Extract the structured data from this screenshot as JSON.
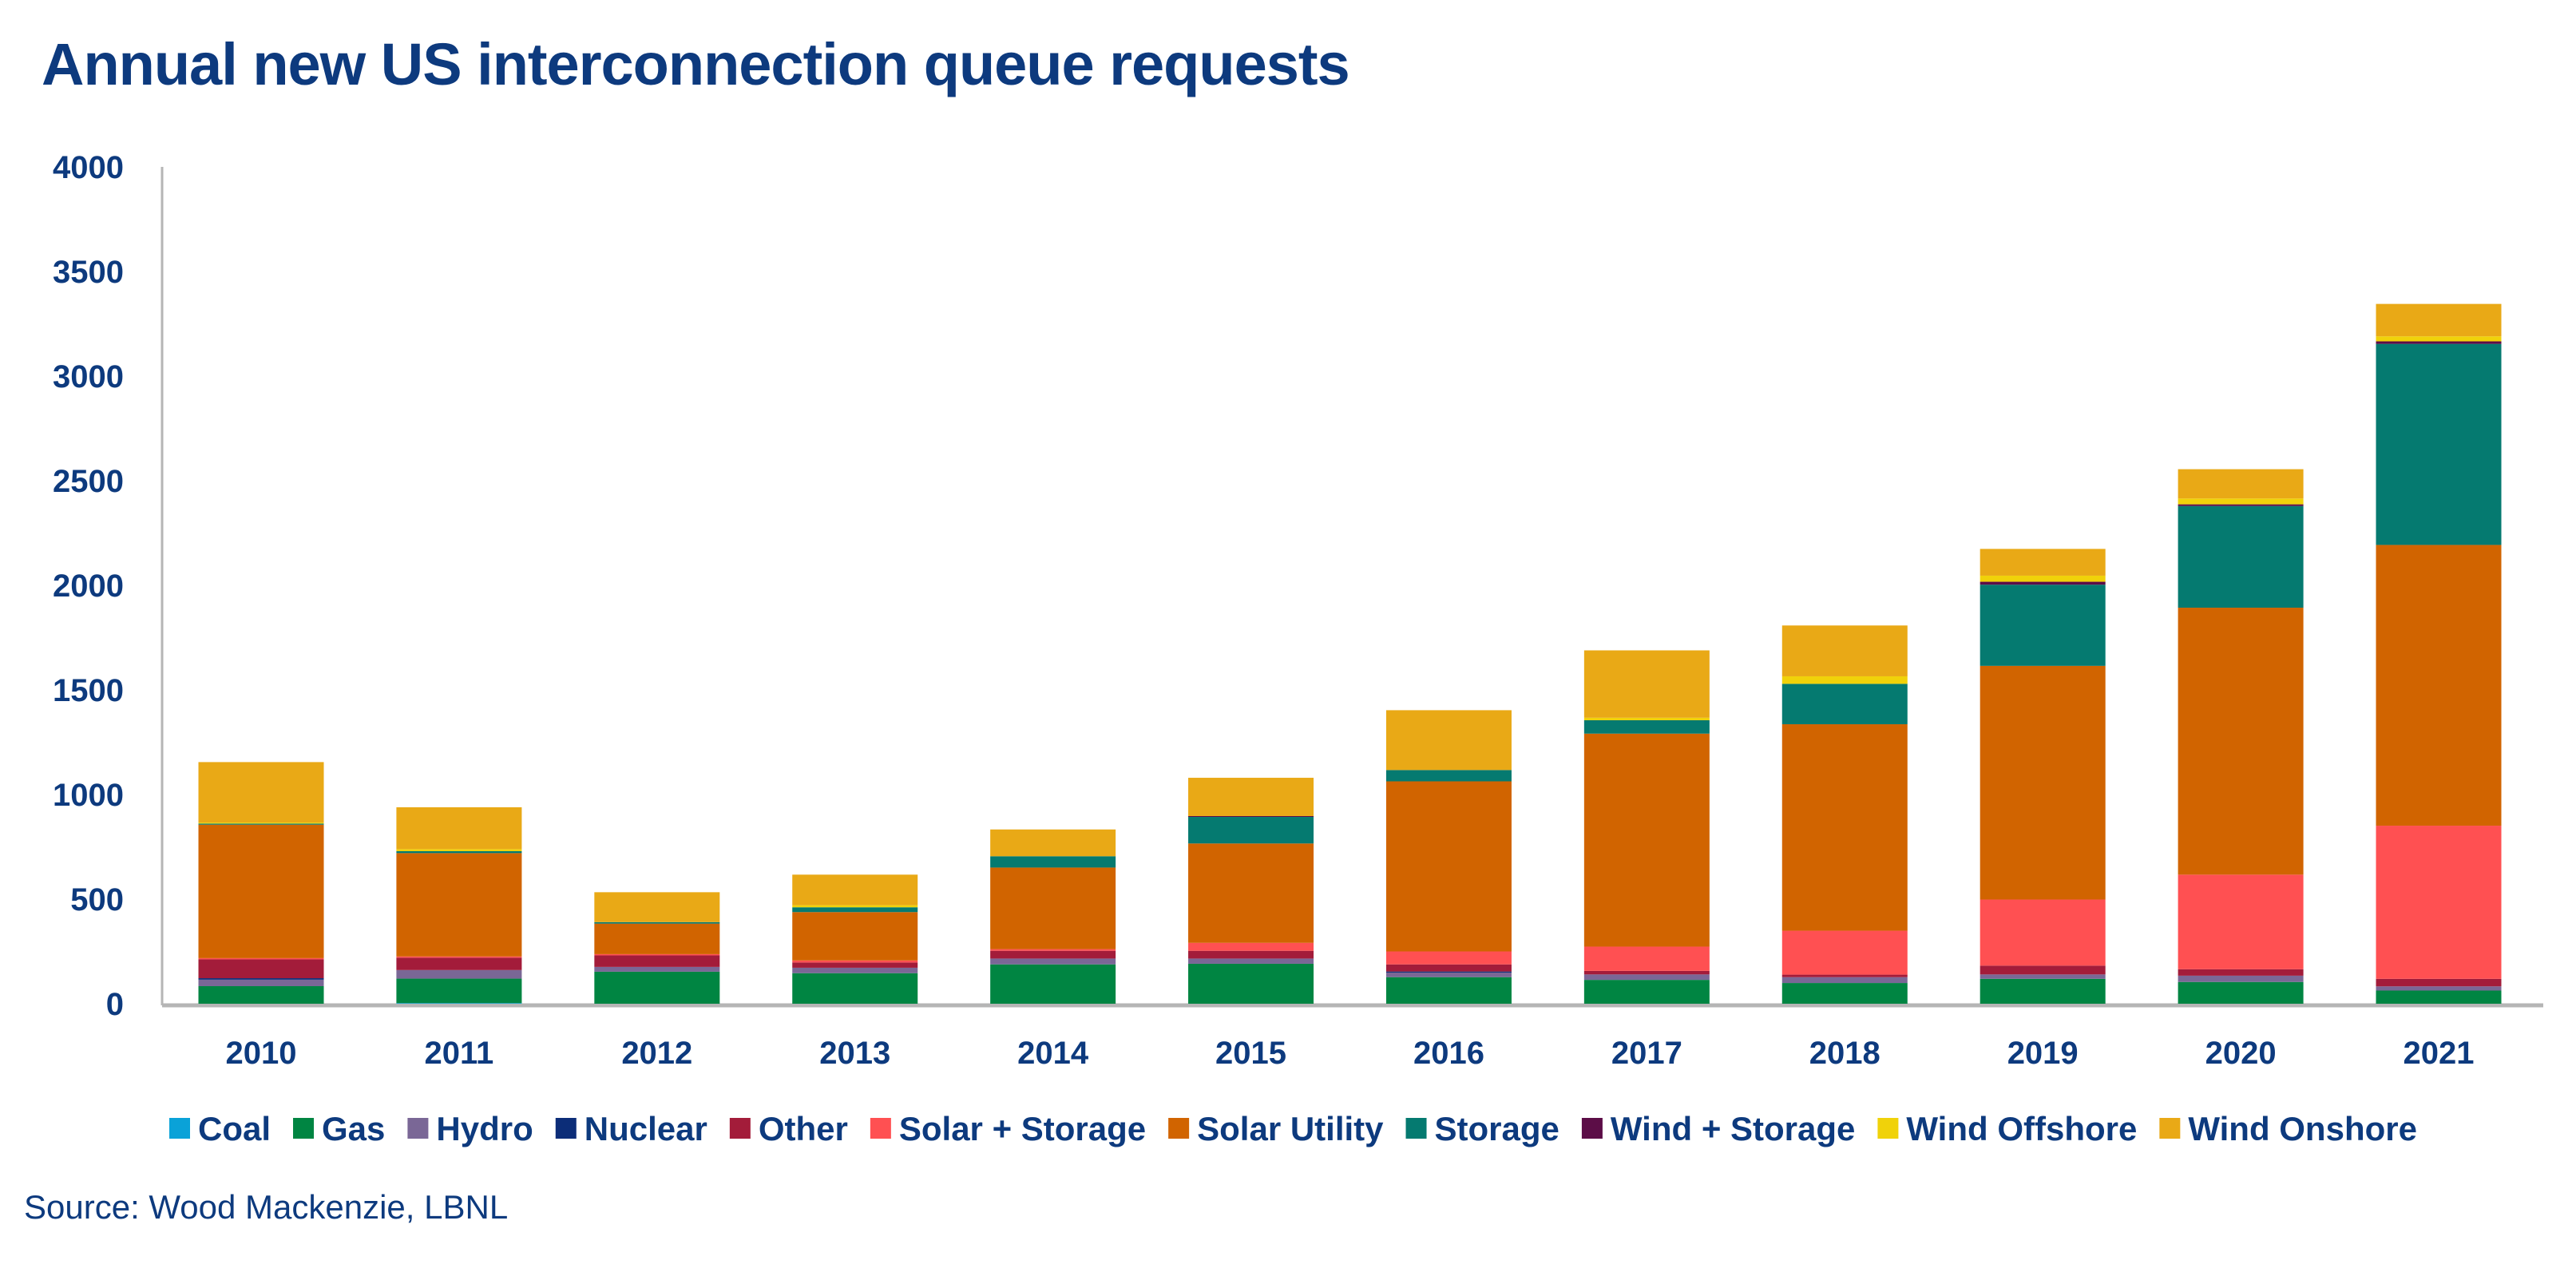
{
  "chart_data": {
    "type": "bar",
    "stacked": true,
    "title": "Annual new US interconnection queue requests",
    "source": "Source: Wood Mackenzie, LBNL",
    "xlabel": "",
    "ylabel": "",
    "ylim": [
      0,
      4000
    ],
    "yticks": [
      0,
      500,
      1000,
      1500,
      2000,
      2500,
      3000,
      3500,
      4000
    ],
    "grid": false,
    "legend_position": "bottom",
    "categories": [
      "2010",
      "2011",
      "2012",
      "2013",
      "2014",
      "2015",
      "2016",
      "2017",
      "2018",
      "2019",
      "2020",
      "2021"
    ],
    "series": [
      {
        "name": "Coal",
        "color": "#0aa2d8",
        "values": [
          0,
          3,
          0,
          0,
          0,
          0,
          0,
          0,
          0,
          0,
          0,
          0
        ]
      },
      {
        "name": "Gas",
        "color": "#008542",
        "values": [
          84,
          117,
          153,
          146,
          188,
          191,
          127,
          114,
          99,
          119,
          104,
          63
        ]
      },
      {
        "name": "Hydro",
        "color": "#7a6796",
        "values": [
          31,
          41,
          23,
          26,
          28,
          25,
          22,
          26,
          28,
          21,
          30,
          20
        ]
      },
      {
        "name": "Nuclear",
        "color": "#0c2d78",
        "values": [
          7,
          0,
          0,
          0,
          0,
          0,
          5,
          0,
          0,
          0,
          0,
          0
        ]
      },
      {
        "name": "Other",
        "color": "#a31c3a",
        "values": [
          90,
          59,
          55,
          25,
          37,
          37,
          34,
          17,
          12,
          42,
          31,
          36
        ]
      },
      {
        "name": "Solar + Storage",
        "color": "#ff5052",
        "values": [
          6,
          6,
          6,
          10,
          8,
          38,
          62,
          116,
          210,
          316,
          452,
          732
        ]
      },
      {
        "name": "Solar Utility",
        "color": "#d16400",
        "values": [
          638,
          494,
          146,
          231,
          390,
          475,
          813,
          1018,
          987,
          1117,
          1276,
          1342
        ]
      },
      {
        "name": "Storage",
        "color": "#057a70",
        "values": [
          5,
          9,
          7,
          23,
          54,
          127,
          54,
          64,
          193,
          388,
          486,
          961
        ]
      },
      {
        "name": "Wind + Storage",
        "color": "#5c0d47",
        "values": [
          0,
          0,
          0,
          0,
          0,
          4,
          0,
          0,
          0,
          14,
          8,
          12
        ]
      },
      {
        "name": "Wind Offshore",
        "color": "#f0d20a",
        "values": [
          5,
          10,
          0,
          10,
          0,
          0,
          0,
          12,
          36,
          29,
          28,
          24
        ]
      },
      {
        "name": "Wind Onshore",
        "color": "#e9a916",
        "values": [
          289,
          200,
          143,
          146,
          128,
          183,
          286,
          322,
          243,
          128,
          140,
          155
        ]
      }
    ]
  }
}
